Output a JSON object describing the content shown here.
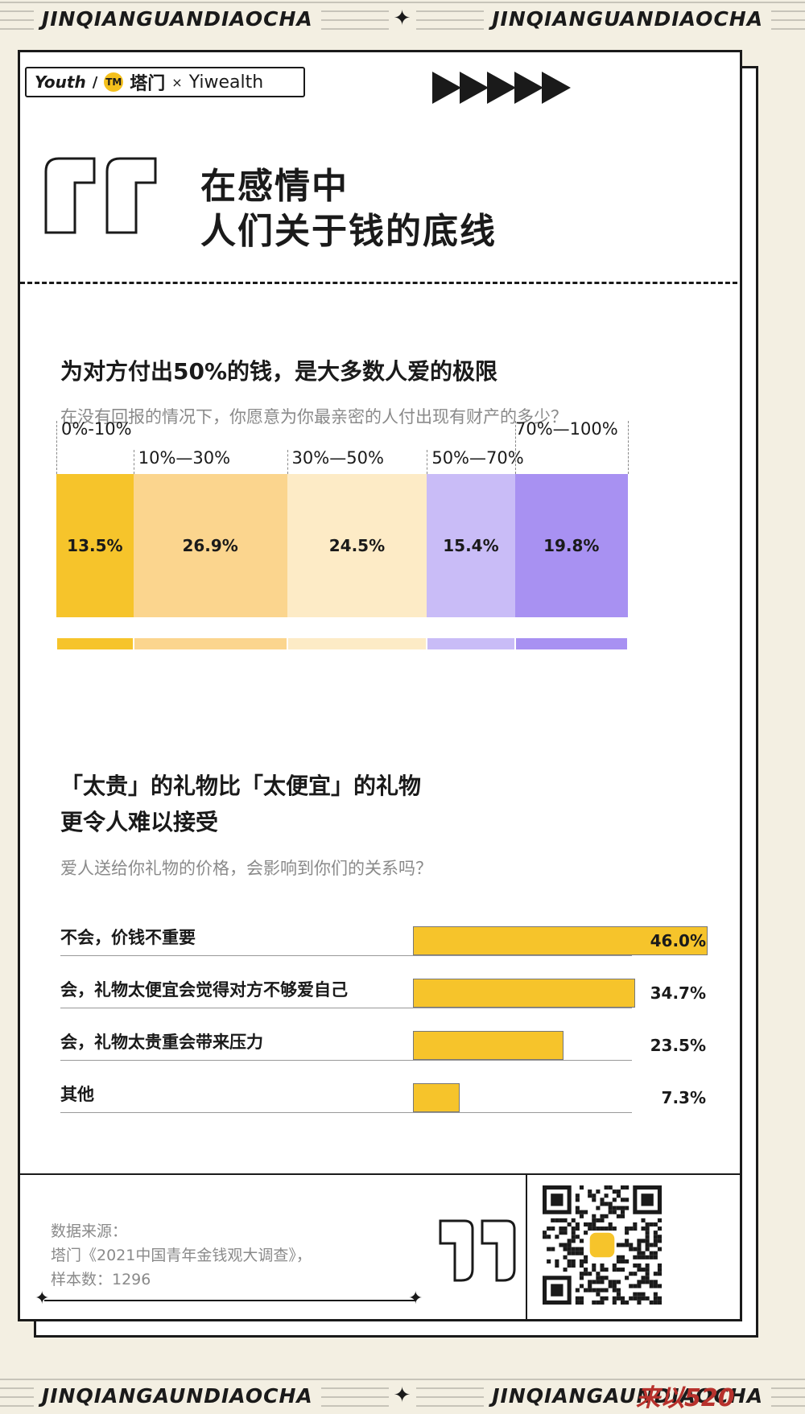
{
  "banner": {
    "text": "JINQIANGUANDIAOCHA",
    "bottom_text": "JINQIANGAUNDIAOCHA",
    "star": "✦"
  },
  "logos": {
    "youth": "Youth",
    "sep": "/",
    "tamen": "塔门",
    "tamen_mark": "TM",
    "x": "×",
    "yiwealth": "Yiwealth"
  },
  "title": {
    "line1": "在感情中",
    "line2": "人们关于钱的底线"
  },
  "section1": {
    "title": "为对方付出50%的钱，是大多数人爱的极限",
    "subtitle": "在没有回报的情况下，你愿意为你最亲密的人付出现有财产的多少？"
  },
  "section2": {
    "title_line1": "「太贵」的礼物比「太便宜」的礼物",
    "title_line2": "更令人难以接受",
    "subtitle": "爱人送给你礼物的价格，会影响到你们的关系吗？"
  },
  "chart_data": [
    {
      "type": "bar",
      "stacked": true,
      "orientation": "horizontal-100%",
      "categories": [
        "0%-10%",
        "10%—30%",
        "30%—50%",
        "50%—70%",
        "70%—100%"
      ],
      "values": [
        13.5,
        26.9,
        24.5,
        15.4,
        19.8
      ],
      "value_labels": [
        "13.5%",
        "26.9%",
        "24.5%",
        "15.4%",
        "19.8%"
      ],
      "colors": [
        "#f6c42b",
        "#fbd58e",
        "#fdebc6",
        "#c9bcf7",
        "#a891f2"
      ],
      "unit": "%"
    },
    {
      "type": "bar",
      "orientation": "horizontal",
      "categories": [
        "不会，价钱不重要",
        "会，礼物太便宜会觉得对方不够爱自己",
        "会，礼物太贵重会带来压力",
        "其他"
      ],
      "values": [
        46.0,
        34.7,
        23.5,
        7.3
      ],
      "value_labels": [
        "46.0%",
        "34.7%",
        "23.5%",
        "7.3%"
      ],
      "xlim": [
        0,
        46.0
      ],
      "color": "#f6c42b",
      "unit": "%"
    }
  ],
  "source": {
    "line1": "数据来源：",
    "line2": "塔门《2021中国青年金钱观大调查》，",
    "line3": "样本数：1296"
  },
  "watermark": "来以520"
}
